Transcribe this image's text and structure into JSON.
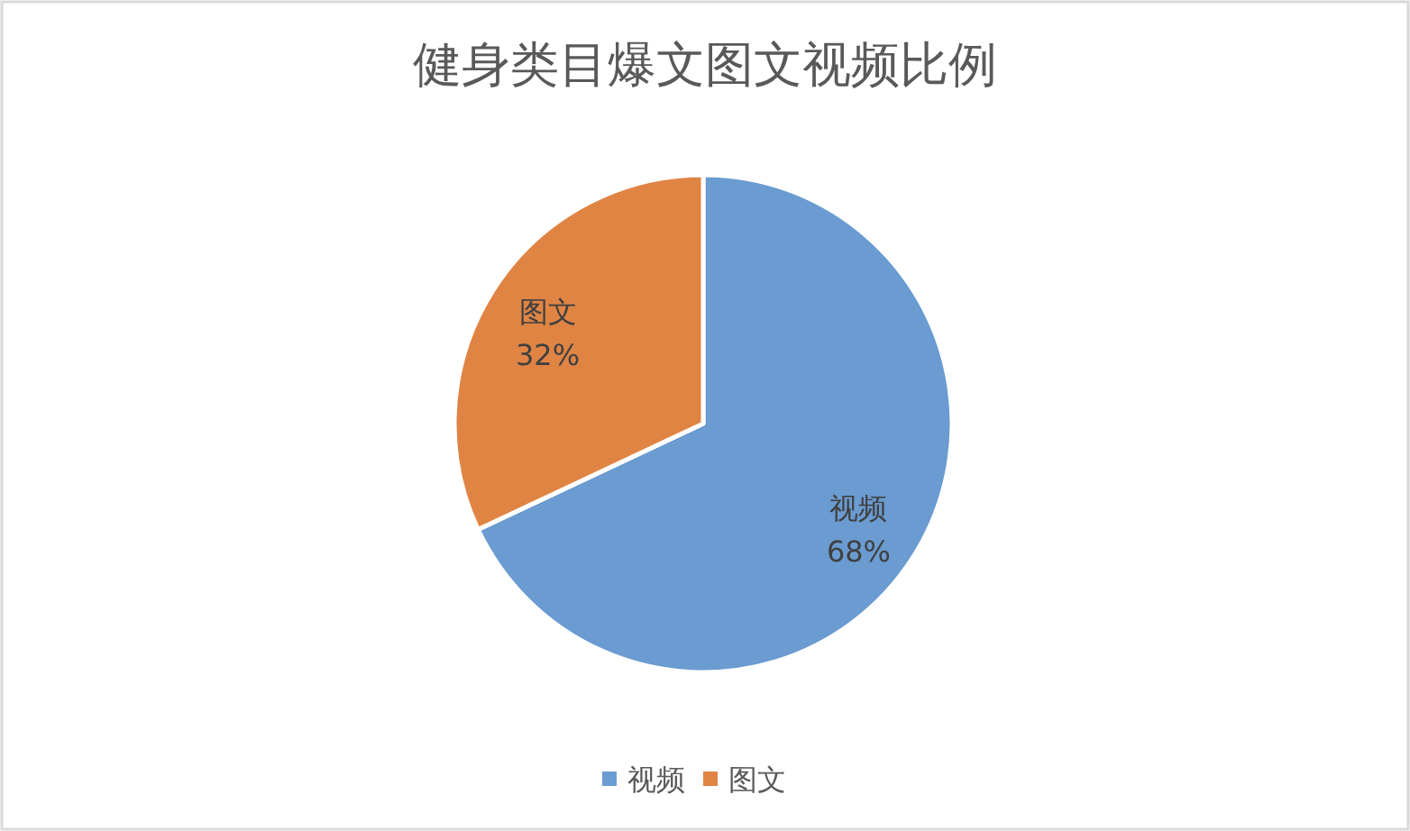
{
  "chart_data": {
    "type": "pie",
    "title": "健身类目爆文图文视频比例",
    "categories": [
      "视频",
      "图文"
    ],
    "values": [
      68,
      32
    ],
    "colors": [
      "#6a9bd1",
      "#e08444"
    ],
    "value_labels": [
      "68%",
      "32%"
    ],
    "legend": "bottom"
  }
}
